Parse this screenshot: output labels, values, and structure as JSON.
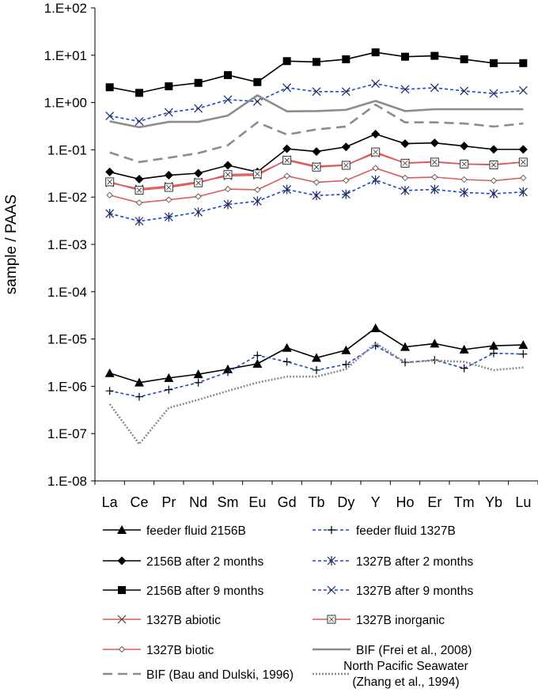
{
  "chart_data": {
    "type": "line",
    "title": "",
    "xlabel": "",
    "ylabel": "sample / PAAS",
    "yscale": "log",
    "ylim": [
      1e-08,
      100
    ],
    "yticks": [
      "1.E+02",
      "1.E+01",
      "1.E+00",
      "1.E-01",
      "1.E-02",
      "1.E-03",
      "1.E-04",
      "1.E-05",
      "1.E-06",
      "1.E-07",
      "1.E-08"
    ],
    "categories": [
      "La",
      "Ce",
      "Pr",
      "Nd",
      "Sm",
      "Eu",
      "Gd",
      "Tb",
      "Dy",
      "Y",
      "Ho",
      "Er",
      "Tm",
      "Yb",
      "Lu"
    ],
    "series": [
      {
        "name": "feeder fluid 2156B",
        "color": "#000000",
        "dash": "solid",
        "marker": "triangle",
        "values": [
          1.9e-06,
          1.2e-06,
          1.5e-06,
          1.8e-06,
          2.3e-06,
          3e-06,
          6.5e-06,
          4e-06,
          5.8e-06,
          1.7e-05,
          6.8e-06,
          8e-06,
          6e-06,
          7.2e-06,
          7.5e-06
        ]
      },
      {
        "name": "feeder fluid 1327B",
        "color": "#1f47c8",
        "dash": "dashed",
        "marker": "plus",
        "values": [
          8e-07,
          6e-07,
          8.5e-07,
          1.2e-06,
          2e-06,
          4.5e-06,
          3.3e-06,
          2.2e-06,
          2.9e-06,
          7.2e-06,
          3.2e-06,
          3.6e-06,
          2.4e-06,
          5e-06,
          4.8e-06
        ]
      },
      {
        "name": "2156B after 2 months",
        "color": "#000000",
        "dash": "solid",
        "marker": "diamond",
        "values": [
          0.034,
          0.024,
          0.029,
          0.032,
          0.047,
          0.034,
          0.105,
          0.092,
          0.115,
          0.215,
          0.135,
          0.14,
          0.12,
          0.102,
          0.102
        ]
      },
      {
        "name": "1327B after 2 months",
        "color": "#1f47c8",
        "dash": "dashed",
        "marker": "asterisk",
        "values": [
          0.0045,
          0.0031,
          0.0038,
          0.0048,
          0.007,
          0.0082,
          0.0145,
          0.0108,
          0.0115,
          0.023,
          0.0138,
          0.0145,
          0.0125,
          0.0118,
          0.0128
        ]
      },
      {
        "name": "2156B after 9 months",
        "color": "#000000",
        "dash": "solid",
        "marker": "square",
        "values": [
          2.1,
          1.6,
          2.2,
          2.6,
          3.8,
          2.7,
          7.5,
          7.2,
          8.2,
          11.5,
          9.3,
          9.7,
          8.2,
          6.8,
          6.8
        ]
      },
      {
        "name": "1327B after 9 months",
        "color": "#1f47c8",
        "dash": "dashed",
        "marker": "x",
        "values": [
          0.52,
          0.4,
          0.62,
          0.75,
          1.15,
          1.05,
          2.05,
          1.7,
          1.7,
          2.5,
          1.9,
          2.05,
          1.75,
          1.55,
          1.8
        ]
      },
      {
        "name": "1327B abiotic",
        "color": "#e05a5a",
        "dash": "solid",
        "marker": "x",
        "values": [
          0.02,
          0.015,
          0.017,
          0.021,
          0.028,
          0.029,
          0.062,
          0.045,
          0.048,
          0.085,
          0.053,
          0.056,
          0.05,
          0.049,
          0.055
        ]
      },
      {
        "name": "1327B inorganic",
        "color": "#e05a5a",
        "dash": "solid",
        "marker": "boxedsquare",
        "values": [
          0.021,
          0.014,
          0.016,
          0.02,
          0.03,
          0.031,
          0.06,
          0.043,
          0.047,
          0.09,
          0.052,
          0.055,
          0.05,
          0.048,
          0.055
        ]
      },
      {
        "name": "1327B biotic",
        "color": "#e05a5a",
        "dash": "solid",
        "marker": "smalldiamond",
        "values": [
          0.011,
          0.0076,
          0.0088,
          0.0103,
          0.0148,
          0.0143,
          0.028,
          0.0205,
          0.0225,
          0.041,
          0.0255,
          0.0265,
          0.0235,
          0.0222,
          0.0255
        ]
      },
      {
        "name": "BIF (Frei et al., 2008)",
        "color": "#8c8c8c",
        "dash": "solid",
        "marker": "none",
        "width": 2.6,
        "values": [
          0.4,
          0.3,
          0.39,
          0.39,
          0.53,
          1.42,
          0.65,
          0.66,
          0.7,
          1.08,
          0.66,
          0.72,
          0.72,
          0.72,
          0.72
        ]
      },
      {
        "name": "BIF (Bau and Dulski, 1996)",
        "color": "#8c8c8c",
        "dash": "longdash",
        "marker": "none",
        "width": 2.6,
        "values": [
          0.088,
          0.055,
          0.068,
          0.085,
          0.125,
          0.38,
          0.21,
          0.27,
          0.31,
          0.9,
          0.38,
          0.38,
          0.36,
          0.31,
          0.36
        ]
      },
      {
        "name": "North Pacific Seawater (Zhang et al., 1994)",
        "color": "#8c8c8c",
        "dash": "dotted",
        "marker": "none",
        "width": 2.6,
        "values": [
          4.2e-07,
          6e-08,
          3.5e-07,
          5.2e-07,
          8e-07,
          1.2e-06,
          1.6e-06,
          1.6e-06,
          2.3e-06,
          8.2e-06,
          3.2e-06,
          3.5e-06,
          3.3e-06,
          2.2e-06,
          2.5e-06
        ]
      }
    ],
    "legend": {
      "position": "bottom",
      "entries": [
        {
          "series": 0,
          "label": "feeder fluid 2156B"
        },
        {
          "series": 1,
          "label": "feeder fluid 1327B"
        },
        {
          "series": 2,
          "label": "2156B after 2 months"
        },
        {
          "series": 3,
          "label": "1327B after 2 months"
        },
        {
          "series": 4,
          "label": "2156B after 9 months"
        },
        {
          "series": 5,
          "label": "1327B after 9 months"
        },
        {
          "series": 6,
          "label": "1327B abiotic"
        },
        {
          "series": 7,
          "label": "1327B inorganic"
        },
        {
          "series": 8,
          "label": "1327B biotic"
        },
        {
          "series": 9,
          "label": "BIF (Frei et al., 2008)"
        },
        {
          "series": 10,
          "label": "BIF (Bau and Dulski, 1996)"
        },
        {
          "series": 11,
          "label": "North Pacific Seawater",
          "label2": "(Zhang et al., 1994)"
        }
      ]
    }
  }
}
